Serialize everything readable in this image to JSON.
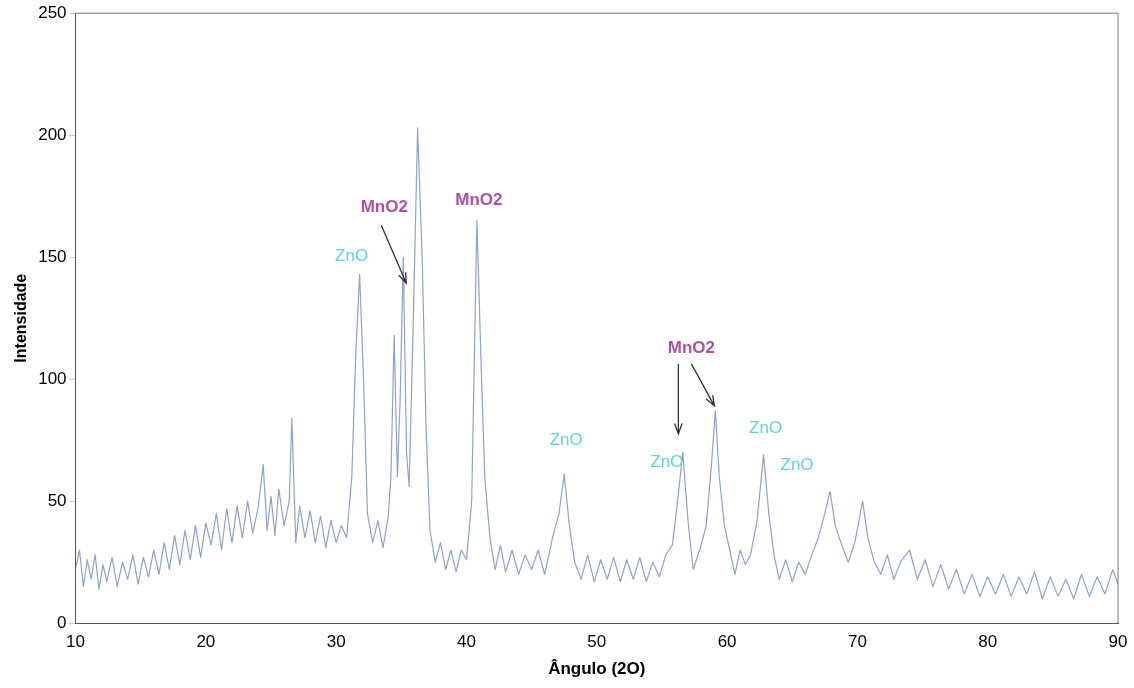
{
  "chart_data": {
    "type": "line",
    "xlabel": "Ângulo (2O)",
    "ylabel": "Intensidade",
    "xlim": [
      10,
      90
    ],
    "xticks": [
      10,
      20,
      30,
      40,
      50,
      60,
      70,
      80,
      90
    ],
    "ylim": [
      0,
      250
    ],
    "yticks": [
      0,
      50,
      100,
      150,
      200,
      250
    ],
    "grid": false,
    "legend": false,
    "marker": "none",
    "line_style": "solid",
    "series": [
      {
        "color": "#8fa3c8",
        "x": [
          10,
          10.3,
          10.6,
          10.9,
          11.2,
          11.5,
          11.8,
          12.1,
          12.4,
          12.8,
          13.2,
          13.6,
          14,
          14.4,
          14.8,
          15.2,
          15.6,
          16,
          16.4,
          16.8,
          17.2,
          17.6,
          18,
          18.4,
          18.8,
          19.2,
          19.6,
          20,
          20.4,
          20.8,
          21.2,
          21.6,
          22,
          22.4,
          22.8,
          23.2,
          23.6,
          24,
          24.4,
          24.7,
          25,
          25.3,
          25.6,
          26,
          26.4,
          26.6,
          26.9,
          27.2,
          27.6,
          28,
          28.4,
          28.8,
          29.2,
          29.6,
          30,
          30.4,
          30.8,
          31.2,
          31.5,
          31.8,
          32.1,
          32.4,
          32.8,
          33.2,
          33.6,
          34,
          34.2,
          34.45,
          34.7,
          34.9,
          35.15,
          35.4,
          35.6,
          35.9,
          36.25,
          36.6,
          36.9,
          37.2,
          37.6,
          38,
          38.4,
          38.8,
          39.2,
          39.6,
          40,
          40.4,
          40.8,
          41.1,
          41.4,
          41.8,
          42.2,
          42.6,
          43,
          43.5,
          44,
          44.5,
          45,
          45.5,
          46,
          46.6,
          47.1,
          47.5,
          47.9,
          48.3,
          48.8,
          49.3,
          49.8,
          50.3,
          50.8,
          51.3,
          51.8,
          52.3,
          52.8,
          53.3,
          53.8,
          54.3,
          54.8,
          55.3,
          55.8,
          56.2,
          56.6,
          57,
          57.4,
          57.9,
          58.4,
          58.8,
          59.1,
          59.4,
          59.8,
          60.2,
          60.6,
          61,
          61.4,
          61.8,
          62.3,
          62.8,
          63.2,
          63.6,
          64,
          64.5,
          65,
          65.5,
          66,
          66.5,
          67,
          67.5,
          67.9,
          68.3,
          68.8,
          69.3,
          69.8,
          70.4,
          70.8,
          71.3,
          71.8,
          72.3,
          72.8,
          73.3,
          74,
          74.6,
          75.2,
          75.8,
          76.4,
          77,
          77.6,
          78.2,
          78.8,
          79.4,
          80,
          80.6,
          81.2,
          81.8,
          82.4,
          83,
          83.6,
          84.2,
          84.8,
          85.4,
          86,
          86.6,
          87.2,
          87.8,
          88.4,
          89,
          89.6,
          90
        ],
        "values": [
          22,
          30,
          15,
          26,
          18,
          28,
          14,
          24,
          17,
          27,
          15,
          25,
          18,
          28,
          16,
          27,
          19,
          30,
          20,
          33,
          22,
          36,
          24,
          38,
          26,
          40,
          27,
          41,
          32,
          45,
          30,
          47,
          33,
          48,
          35,
          50,
          37,
          47,
          65,
          38,
          52,
          36,
          55,
          40,
          50,
          84,
          33,
          48,
          35,
          46,
          33,
          44,
          31,
          42,
          33,
          40,
          35,
          60,
          110,
          143,
          100,
          45,
          33,
          42,
          31,
          44,
          60,
          118,
          60,
          90,
          150,
          70,
          56,
          120,
          203,
          150,
          80,
          38,
          25,
          33,
          22,
          30,
          21,
          30,
          26,
          50,
          165,
          110,
          60,
          35,
          22,
          32,
          21,
          30,
          20,
          28,
          22,
          30,
          20,
          35,
          45,
          61,
          40,
          25,
          18,
          28,
          17,
          26,
          18,
          27,
          17,
          26,
          18,
          27,
          17,
          25,
          19,
          28,
          32,
          50,
          70,
          42,
          22,
          30,
          40,
          65,
          87,
          60,
          40,
          30,
          20,
          30,
          24,
          28,
          42,
          69,
          45,
          28,
          18,
          26,
          17,
          25,
          20,
          28,
          35,
          45,
          54,
          40,
          32,
          25,
          33,
          50,
          35,
          25,
          20,
          28,
          18,
          25,
          30,
          18,
          26,
          15,
          24,
          14,
          22,
          12,
          20,
          11,
          19,
          12,
          20,
          11,
          19,
          12,
          21,
          10,
          19,
          11,
          18,
          10,
          20,
          11,
          19,
          12,
          22,
          16
        ]
      }
    ],
    "annotations": [
      {
        "text": "ZnO",
        "x": 31.8,
        "y": 143
      },
      {
        "text": "MnO2",
        "x": 35.15,
        "y": 150
      },
      {
        "text": "MnO2",
        "x": 40.8,
        "y": 165
      },
      {
        "text": "ZnO",
        "x": 47.5,
        "y": 61
      },
      {
        "text": "ZnO",
        "x": 56.6,
        "y": 70
      },
      {
        "text": "MnO2",
        "x": 59.1,
        "y": 87
      },
      {
        "text": "ZnO",
        "x": 62.8,
        "y": 69
      },
      {
        "text": "ZnO",
        "x": 67.9,
        "y": 54
      }
    ]
  }
}
